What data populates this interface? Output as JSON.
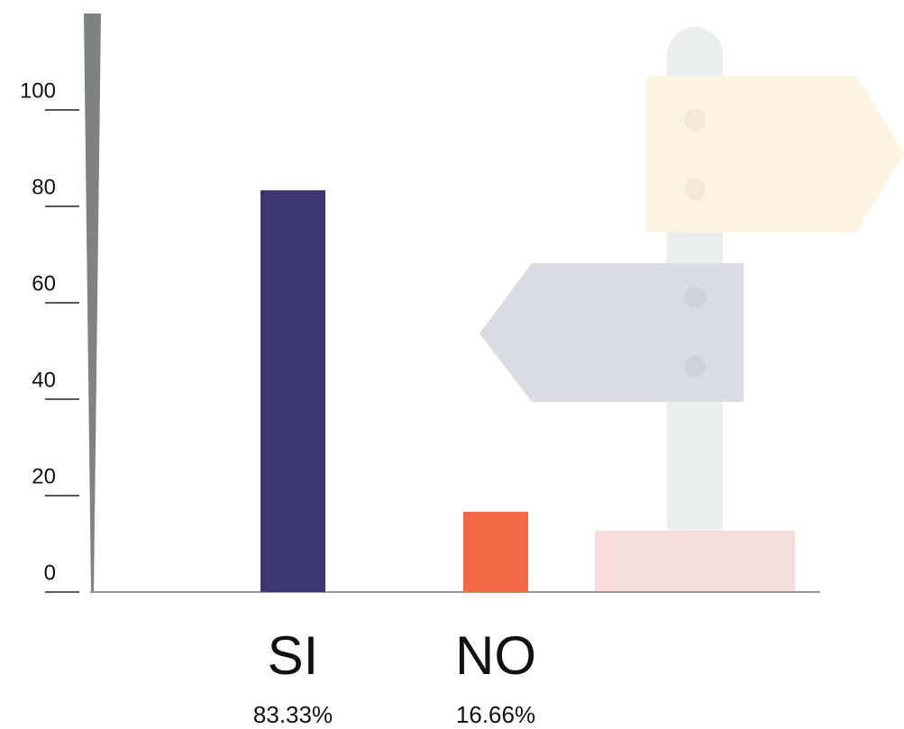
{
  "chart_data": {
    "type": "bar",
    "categories": [
      "SI",
      "NO"
    ],
    "values": [
      83.33,
      16.66
    ],
    "value_labels": [
      "83.33%",
      "16.66%"
    ],
    "colors": [
      "#3b3570",
      "#f06846"
    ],
    "ylim": [
      0,
      120
    ],
    "yticks": [
      0,
      20,
      40,
      60,
      80,
      100
    ]
  }
}
